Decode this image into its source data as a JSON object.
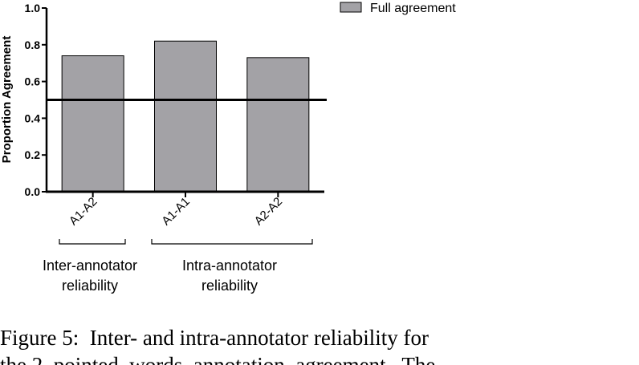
{
  "chart_data": {
    "type": "bar",
    "title": "",
    "xlabel": "",
    "ylabel": "Proportion Agreement",
    "ylim": [
      0,
      1.0
    ],
    "yticks": [
      "0.0",
      "0.2",
      "0.4",
      "0.6",
      "0.8",
      "1.0"
    ],
    "categories": [
      "A1-A2",
      "A1-A1",
      "A2-A2"
    ],
    "series": [
      {
        "name": "Full agreement",
        "values": [
          0.74,
          0.82,
          0.73
        ],
        "color": "#a3a2a6"
      }
    ],
    "reference_line": 0.5,
    "legend": "top-right",
    "grid": false,
    "groups": [
      {
        "label_line1": "Inter-annotator",
        "label_line2": "reliability",
        "categories": [
          "A1-A2"
        ]
      },
      {
        "label_line1": "Intra-annotator",
        "label_line2": "reliability",
        "categories": [
          "A1-A1",
          "A2-A2"
        ]
      }
    ]
  },
  "caption": "Figure 5:  Inter- and intra-annotator reliability for\nthe 2  pointed  words  annotation  agreement.  The"
}
